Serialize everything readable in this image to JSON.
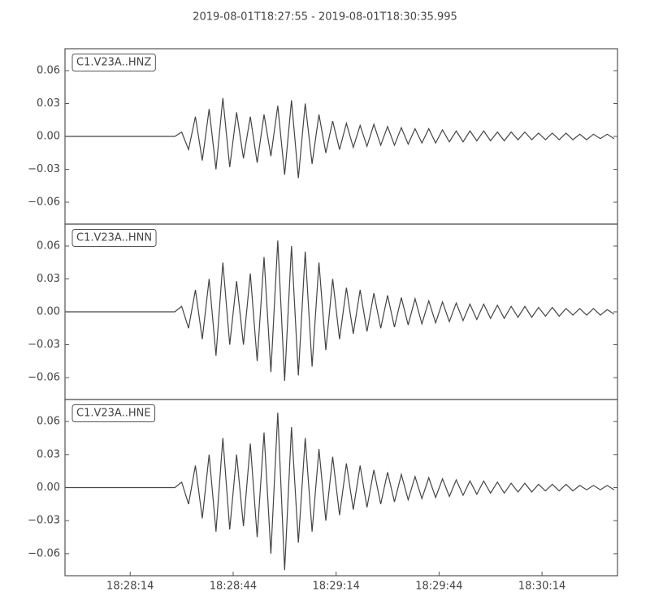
{
  "title": "2019-08-01T18:27:55  -  2019-08-01T18:30:35.995",
  "chart_data": [
    {
      "type": "line",
      "label": "C1.V23A..HNZ",
      "color": "#444444",
      "x": [
        "18:27:55",
        "18:27:57",
        "18:27:59",
        "18:28:01",
        "18:28:03",
        "18:28:05",
        "18:28:07",
        "18:28:09",
        "18:28:11",
        "18:28:13",
        "18:28:15",
        "18:28:17",
        "18:28:19",
        "18:28:21",
        "18:28:23",
        "18:28:25",
        "18:28:27",
        "18:28:29",
        "18:28:31",
        "18:28:33",
        "18:28:35",
        "18:28:37",
        "18:28:39",
        "18:28:41",
        "18:28:43",
        "18:28:45",
        "18:28:47",
        "18:28:49",
        "18:28:51",
        "18:28:53",
        "18:28:55",
        "18:28:57",
        "18:28:59",
        "18:29:01",
        "18:29:03",
        "18:29:05",
        "18:29:07",
        "18:29:09",
        "18:29:11",
        "18:29:13",
        "18:29:15",
        "18:29:17",
        "18:29:19",
        "18:29:21",
        "18:29:23",
        "18:29:25",
        "18:29:27",
        "18:29:29",
        "18:29:31",
        "18:29:33",
        "18:29:35",
        "18:29:37",
        "18:29:39",
        "18:29:41",
        "18:29:43",
        "18:29:45",
        "18:29:47",
        "18:29:49",
        "18:29:51",
        "18:29:53",
        "18:29:55",
        "18:29:57",
        "18:29:59",
        "18:30:01",
        "18:30:03",
        "18:30:05",
        "18:30:07",
        "18:30:09",
        "18:30:11",
        "18:30:13",
        "18:30:15",
        "18:30:17",
        "18:30:19",
        "18:30:21",
        "18:30:23",
        "18:30:25",
        "18:30:27",
        "18:30:29",
        "18:30:31",
        "18:30:33",
        "18:30:35"
      ],
      "values": [
        0,
        0,
        0,
        0,
        0,
        0,
        0,
        0,
        0,
        0,
        0,
        0,
        0,
        0,
        0,
        0,
        0,
        0.004,
        -0.012,
        0.018,
        -0.022,
        0.025,
        -0.03,
        0.035,
        -0.028,
        0.022,
        -0.02,
        0.018,
        -0.024,
        0.02,
        -0.018,
        0.028,
        -0.035,
        0.033,
        -0.038,
        0.03,
        -0.025,
        0.02,
        -0.015,
        0.014,
        -0.012,
        0.012,
        -0.01,
        0.01,
        -0.009,
        0.011,
        -0.008,
        0.009,
        -0.008,
        0.008,
        -0.007,
        0.007,
        -0.006,
        0.007,
        -0.006,
        0.006,
        -0.005,
        0.005,
        -0.005,
        0.005,
        -0.004,
        0.005,
        -0.004,
        0.004,
        -0.004,
        0.004,
        -0.003,
        0.004,
        -0.003,
        0.003,
        -0.003,
        0.003,
        -0.003,
        0.003,
        -0.003,
        0.002,
        -0.003,
        0.002,
        -0.002,
        0.002,
        -0.002
      ],
      "xlim": [
        "18:27:55",
        "18:30:35.995"
      ],
      "ylim": [
        -0.08,
        0.08
      ],
      "yticks": [
        {
          "value": -0.06,
          "label": "−0.06"
        },
        {
          "value": -0.03,
          "label": "−0.03"
        },
        {
          "value": 0,
          "label": "0.00"
        },
        {
          "value": 0.03,
          "label": "0.03"
        },
        {
          "value": 0.06,
          "label": "0.06"
        }
      ]
    },
    {
      "type": "line",
      "label": "C1.V23A..HNN",
      "color": "#444444",
      "x": [
        "18:27:55",
        "18:27:57",
        "18:27:59",
        "18:28:01",
        "18:28:03",
        "18:28:05",
        "18:28:07",
        "18:28:09",
        "18:28:11",
        "18:28:13",
        "18:28:15",
        "18:28:17",
        "18:28:19",
        "18:28:21",
        "18:28:23",
        "18:28:25",
        "18:28:27",
        "18:28:29",
        "18:28:31",
        "18:28:33",
        "18:28:35",
        "18:28:37",
        "18:28:39",
        "18:28:41",
        "18:28:43",
        "18:28:45",
        "18:28:47",
        "18:28:49",
        "18:28:51",
        "18:28:53",
        "18:28:55",
        "18:28:57",
        "18:28:59",
        "18:29:01",
        "18:29:03",
        "18:29:05",
        "18:29:07",
        "18:29:09",
        "18:29:11",
        "18:29:13",
        "18:29:15",
        "18:29:17",
        "18:29:19",
        "18:29:21",
        "18:29:23",
        "18:29:25",
        "18:29:27",
        "18:29:29",
        "18:29:31",
        "18:29:33",
        "18:29:35",
        "18:29:37",
        "18:29:39",
        "18:29:41",
        "18:29:43",
        "18:29:45",
        "18:29:47",
        "18:29:49",
        "18:29:51",
        "18:29:53",
        "18:29:55",
        "18:29:57",
        "18:29:59",
        "18:30:01",
        "18:30:03",
        "18:30:05",
        "18:30:07",
        "18:30:09",
        "18:30:11",
        "18:30:13",
        "18:30:15",
        "18:30:17",
        "18:30:19",
        "18:30:21",
        "18:30:23",
        "18:30:25",
        "18:30:27",
        "18:30:29",
        "18:30:31",
        "18:30:33",
        "18:30:35"
      ],
      "values": [
        0,
        0,
        0,
        0,
        0,
        0,
        0,
        0,
        0,
        0,
        0,
        0,
        0,
        0,
        0,
        0,
        0,
        0.005,
        -0.015,
        0.02,
        -0.025,
        0.03,
        -0.04,
        0.045,
        -0.03,
        0.028,
        -0.03,
        0.035,
        -0.045,
        0.05,
        -0.055,
        0.065,
        -0.063,
        0.06,
        -0.058,
        0.055,
        -0.05,
        0.045,
        -0.035,
        0.03,
        -0.025,
        0.022,
        -0.02,
        0.02,
        -0.018,
        0.017,
        -0.015,
        0.015,
        -0.014,
        0.013,
        -0.012,
        0.012,
        -0.011,
        0.01,
        -0.01,
        0.009,
        -0.009,
        0.008,
        -0.008,
        0.007,
        -0.007,
        0.007,
        -0.006,
        0.006,
        -0.006,
        0.005,
        -0.005,
        0.005,
        -0.005,
        0.004,
        -0.004,
        0.004,
        -0.004,
        0.003,
        -0.003,
        0.003,
        -0.003,
        0.003,
        -0.003,
        0.002,
        -0.002
      ],
      "xlim": [
        "18:27:55",
        "18:30:35.995"
      ],
      "ylim": [
        -0.08,
        0.08
      ],
      "yticks": [
        {
          "value": -0.06,
          "label": "−0.06"
        },
        {
          "value": -0.03,
          "label": "−0.03"
        },
        {
          "value": 0,
          "label": "0.00"
        },
        {
          "value": 0.03,
          "label": "0.03"
        },
        {
          "value": 0.06,
          "label": "0.06"
        }
      ]
    },
    {
      "type": "line",
      "label": "C1.V23A..HNE",
      "color": "#444444",
      "x": [
        "18:27:55",
        "18:27:57",
        "18:27:59",
        "18:28:01",
        "18:28:03",
        "18:28:05",
        "18:28:07",
        "18:28:09",
        "18:28:11",
        "18:28:13",
        "18:28:15",
        "18:28:17",
        "18:28:19",
        "18:28:21",
        "18:28:23",
        "18:28:25",
        "18:28:27",
        "18:28:29",
        "18:28:31",
        "18:28:33",
        "18:28:35",
        "18:28:37",
        "18:28:39",
        "18:28:41",
        "18:28:43",
        "18:28:45",
        "18:28:47",
        "18:28:49",
        "18:28:51",
        "18:28:53",
        "18:28:55",
        "18:28:57",
        "18:28:59",
        "18:29:01",
        "18:29:03",
        "18:29:05",
        "18:29:07",
        "18:29:09",
        "18:29:11",
        "18:29:13",
        "18:29:15",
        "18:29:17",
        "18:29:19",
        "18:29:21",
        "18:29:23",
        "18:29:25",
        "18:29:27",
        "18:29:29",
        "18:29:31",
        "18:29:33",
        "18:29:35",
        "18:29:37",
        "18:29:39",
        "18:29:41",
        "18:29:43",
        "18:29:45",
        "18:29:47",
        "18:29:49",
        "18:29:51",
        "18:29:53",
        "18:29:55",
        "18:29:57",
        "18:29:59",
        "18:30:01",
        "18:30:03",
        "18:30:05",
        "18:30:07",
        "18:30:09",
        "18:30:11",
        "18:30:13",
        "18:30:15",
        "18:30:17",
        "18:30:19",
        "18:30:21",
        "18:30:23",
        "18:30:25",
        "18:30:27",
        "18:30:29",
        "18:30:31",
        "18:30:33",
        "18:30:35"
      ],
      "values": [
        0,
        0,
        0,
        0,
        0,
        0,
        0,
        0,
        0,
        0,
        0,
        0,
        0,
        0,
        0,
        0,
        0,
        0.005,
        -0.015,
        0.02,
        -0.028,
        0.03,
        -0.04,
        0.045,
        -0.038,
        0.03,
        -0.035,
        0.04,
        -0.045,
        0.05,
        -0.06,
        0.068,
        -0.075,
        0.055,
        -0.05,
        0.045,
        -0.04,
        0.035,
        -0.03,
        0.028,
        -0.025,
        0.022,
        -0.02,
        0.02,
        -0.018,
        0.016,
        -0.015,
        0.014,
        -0.013,
        0.012,
        -0.011,
        0.01,
        -0.01,
        0.009,
        -0.009,
        0.008,
        -0.008,
        0.007,
        -0.007,
        0.006,
        -0.006,
        0.006,
        -0.005,
        0.005,
        -0.005,
        0.004,
        -0.004,
        0.004,
        -0.004,
        0.003,
        -0.003,
        0.003,
        -0.003,
        0.003,
        -0.003,
        0.002,
        -0.002,
        0.002,
        -0.002,
        0.002,
        -0.002
      ],
      "xlim": [
        "18:27:55",
        "18:30:35.995"
      ],
      "ylim": [
        -0.08,
        0.08
      ],
      "yticks": [
        {
          "value": -0.06,
          "label": "−0.06"
        },
        {
          "value": -0.03,
          "label": "−0.03"
        },
        {
          "value": 0,
          "label": "0.00"
        },
        {
          "value": 0.03,
          "label": "0.03"
        },
        {
          "value": 0.06,
          "label": "0.06"
        }
      ],
      "xticks": [
        {
          "value": "18:28:14",
          "label": "18:28:14"
        },
        {
          "value": "18:28:44",
          "label": "18:28:44"
        },
        {
          "value": "18:29:14",
          "label": "18:29:14"
        },
        {
          "value": "18:29:44",
          "label": "18:29:44"
        },
        {
          "value": "18:30:14",
          "label": "18:30:14"
        }
      ]
    }
  ]
}
